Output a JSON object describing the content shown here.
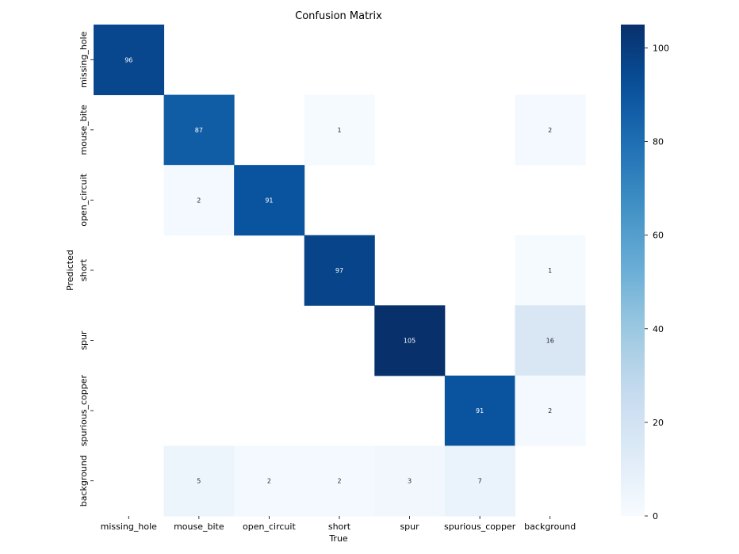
{
  "chart_data": {
    "type": "heatmap",
    "title": "Confusion Matrix",
    "xlabel": "True",
    "ylabel": "Predicted",
    "x_categories": [
      "missing_hole",
      "mouse_bite",
      "open_circuit",
      "short",
      "spur",
      "spurious_copper",
      "background"
    ],
    "y_categories": [
      "missing_hole",
      "mouse_bite",
      "open_circuit",
      "short",
      "spur",
      "spurious_copper",
      "background"
    ],
    "matrix": [
      [
        96,
        null,
        null,
        null,
        null,
        null,
        null
      ],
      [
        null,
        87,
        null,
        1,
        null,
        null,
        2
      ],
      [
        null,
        2,
        91,
        null,
        null,
        null,
        null
      ],
      [
        null,
        null,
        null,
        97,
        null,
        null,
        1
      ],
      [
        null,
        null,
        null,
        null,
        105,
        null,
        16
      ],
      [
        null,
        null,
        null,
        null,
        null,
        91,
        2
      ],
      [
        null,
        5,
        2,
        2,
        3,
        7,
        null
      ]
    ],
    "colormap": "Blues",
    "vmin": 0,
    "vmax": 105,
    "colorbar_ticks": [
      0,
      20,
      40,
      60,
      80,
      100
    ]
  }
}
